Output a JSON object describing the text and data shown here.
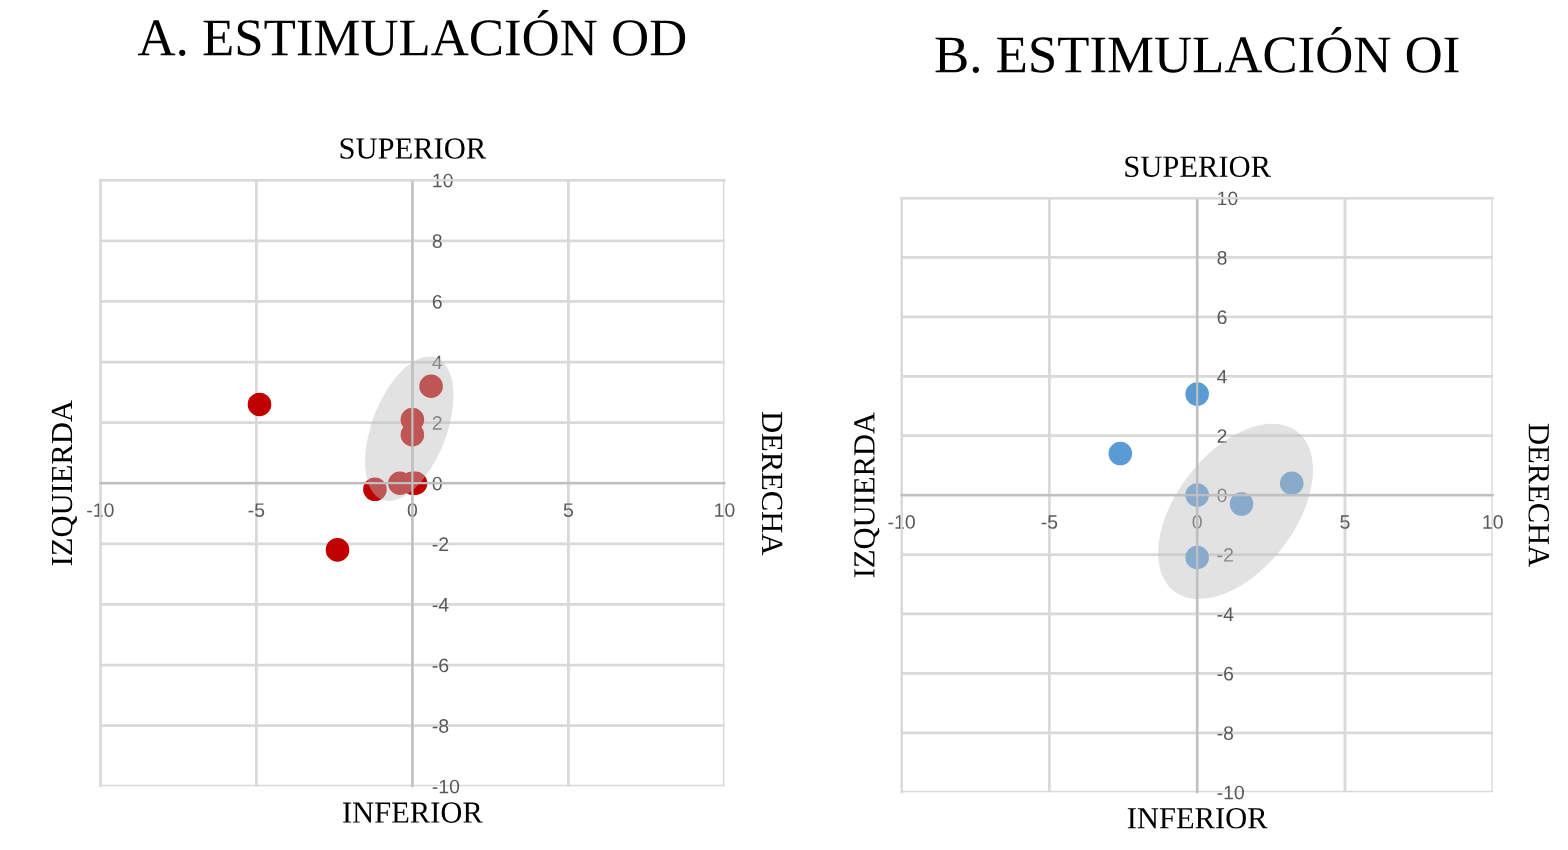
{
  "chart_data": [
    {
      "type": "scatter",
      "title": "A. ESTIMULACIÓN OD",
      "x2label": "SUPERIOR",
      "xlabel": "INFERIOR",
      "ylabel": "IZQUIERDA",
      "y2label": "DERECHA",
      "series": [
        {
          "color": "#c00000",
          "x": [
            -4.9,
            -2.4,
            -1.2,
            -0.4,
            0,
            0.1,
            0,
            0,
            0.6
          ],
          "values": [
            2.6,
            -2.2,
            -0.2,
            0,
            0,
            0,
            2.1,
            1.6,
            3.2
          ]
        }
      ],
      "xlim": [
        -10,
        10
      ],
      "ylim": [
        -10,
        10
      ],
      "xticks": [
        -10,
        -5,
        0,
        5,
        10
      ],
      "yticks": [
        -10,
        -8,
        -6,
        -4,
        -2,
        0,
        2,
        4,
        6,
        8,
        10
      ],
      "grid": true,
      "marker": "circle"
    },
    {
      "type": "scatter",
      "title": "B. ESTIMULACIÓN OI",
      "x2label": "SUPERIOR",
      "xlabel": "INFERIOR",
      "ylabel": "IZQUIERDA",
      "y2label": "DERECHA",
      "series": [
        {
          "color": "#5b9bd5",
          "x": [
            -2.6,
            0,
            0,
            1.5,
            3.2,
            0
          ],
          "values": [
            1.4,
            3.4,
            0,
            -0.3,
            0.4,
            -2.1
          ]
        }
      ],
      "xlim": [
        -10,
        10
      ],
      "ylim": [
        -10,
        10
      ],
      "xticks": [
        -10,
        -5,
        0,
        5,
        10
      ],
      "yticks": [
        -10,
        -8,
        -6,
        -4,
        -2,
        0,
        2,
        4,
        6,
        8,
        10
      ],
      "grid": true,
      "marker": "circle"
    }
  ]
}
